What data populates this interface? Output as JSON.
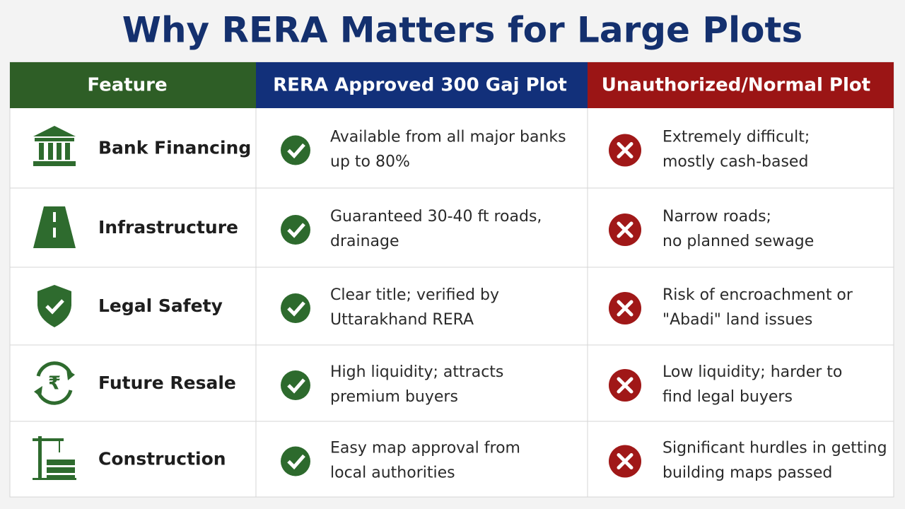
{
  "title": "Why RERA Matters for Large Plots",
  "table": {
    "headers": [
      "Feature",
      "RERA Approved 300 Gaj Plot",
      "Unauthorized/Normal Plot"
    ],
    "rows": [
      {
        "feature": "Bank Financing",
        "rera": [
          "Available from all major banks",
          "up to 80%"
        ],
        "normal": [
          "Extremely difficult;",
          "mostly cash-based"
        ]
      },
      {
        "feature": "Infrastructure",
        "rera": [
          "Guaranteed 30-40 ft roads,",
          "drainage"
        ],
        "normal": [
          "Narrow roads;",
          "no planned sewage"
        ]
      },
      {
        "feature": "Legal Safety",
        "rera": [
          "Clear title; verified by",
          "Uttarakhand RERA"
        ],
        "normal": [
          "Risk of encroachment or",
          "\"Abadi\" land issues"
        ]
      },
      {
        "feature": "Future Resale",
        "rera": [
          "High liquidity; attracts",
          "premium buyers"
        ],
        "normal": [
          "Low liquidity; harder to",
          "find legal buyers"
        ]
      },
      {
        "feature": "Construction",
        "rera": [
          "Easy map approval from",
          "local authorities"
        ],
        "normal": [
          "Significant hurdles in getting",
          "building maps passed"
        ]
      }
    ]
  }
}
